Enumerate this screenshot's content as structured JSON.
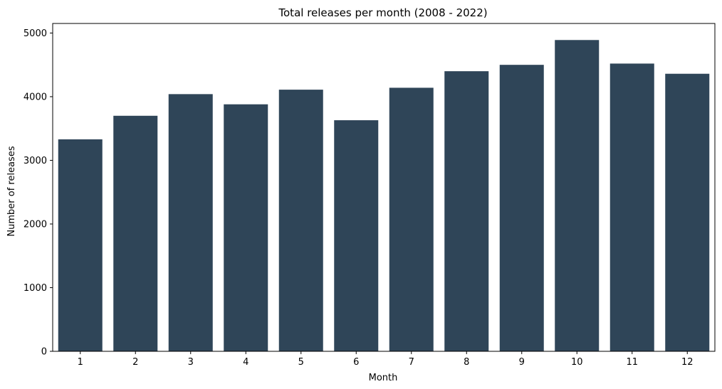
{
  "chart_data": {
    "type": "bar",
    "title": "Total releases per month (2008 - 2022)",
    "xlabel": "Month",
    "ylabel": "Number of releases",
    "categories": [
      "1",
      "2",
      "3",
      "4",
      "5",
      "6",
      "7",
      "8",
      "9",
      "10",
      "11",
      "12"
    ],
    "values": [
      3330,
      3700,
      4040,
      3880,
      4110,
      3630,
      4140,
      4400,
      4500,
      4890,
      4520,
      4360
    ],
    "ylim": [
      0,
      5150
    ],
    "yticks": [
      0,
      1000,
      2000,
      3000,
      4000,
      5000
    ],
    "bar_color": "#2f4558",
    "grid": false,
    "legend": "none"
  }
}
